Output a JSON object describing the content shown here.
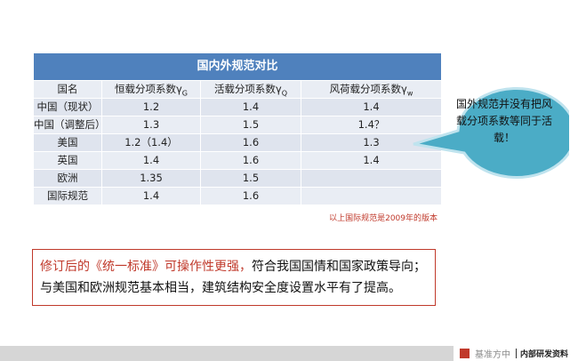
{
  "table": {
    "title": "国内外规范对比",
    "headers": [
      "国名",
      "恒载分项系数γ",
      "G",
      "活载分项系数γ",
      "Q",
      "风荷载分项系数γ",
      "w"
    ],
    "rows": [
      [
        "中国（现状）",
        "1.2",
        "1.4",
        "1.4"
      ],
      [
        "中国（调整后）",
        "1.3",
        "1.5",
        "1.4？"
      ],
      [
        "美国",
        "1.2（1.4）",
        "1.6",
        "1.3"
      ],
      [
        "英国",
        "1.4",
        "1.6",
        "1.4"
      ],
      [
        "欧洲",
        "1.35",
        "1.5",
        ""
      ],
      [
        "国际规范",
        "1.4",
        "1.6",
        ""
      ]
    ]
  },
  "note": "以上国际规范是2009年的版本",
  "callout": "国外规范并没有把风载分项系数等同于活载！",
  "summary": {
    "red": "修订后的《统一标准》可操作性更强，",
    "line1": "符合我国国情和国家政策导向；",
    "line2": "与美国和欧洲规范基本相当，建筑结构安全度设置水平有了提高。"
  },
  "footer": {
    "brand": "基准方中",
    "tag": "内部研发资料"
  },
  "colors": {
    "header": "#4f81bd",
    "callout": "#4bacc6",
    "accent": "#c0392b"
  }
}
